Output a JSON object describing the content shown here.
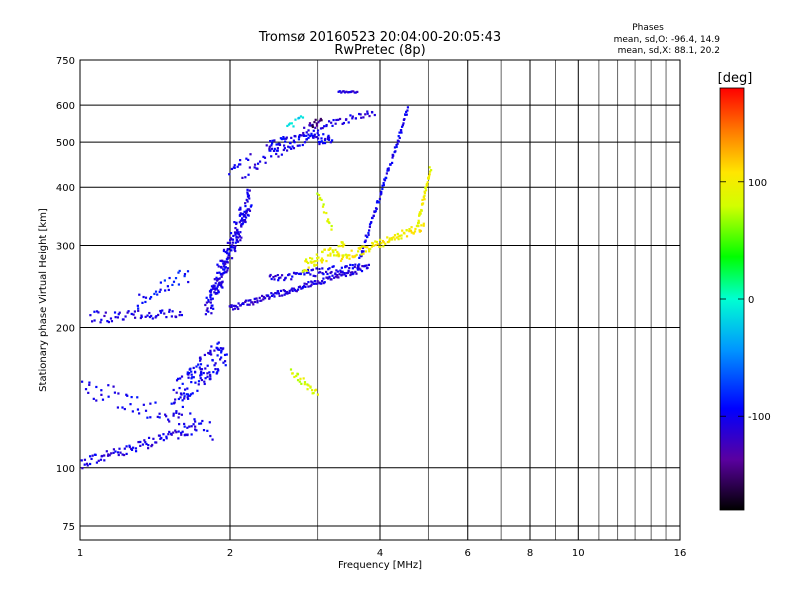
{
  "chart_data": {
    "type": "scatter",
    "title": "Tromsø 20160523 20:04:00-20:05:43",
    "subtitle": "RwPretec (8p)",
    "xlabel": "Frequency [MHz]",
    "ylabel": "Stationary phase Virtual Height [km]",
    "x_scale": "log",
    "y_scale": "log",
    "xlim": [
      1,
      16
    ],
    "ylim": [
      70,
      750
    ],
    "x_ticks": [
      1,
      2,
      4,
      6,
      8,
      10,
      16
    ],
    "x_tick_labels": [
      "1",
      "2",
      "4",
      "6",
      "8",
      "10",
      "16"
    ],
    "x_minor_ticks": [
      3,
      5,
      7,
      9,
      11,
      12,
      13,
      14,
      15
    ],
    "y_ticks": [
      75,
      100,
      200,
      300,
      400,
      500,
      600,
      750
    ],
    "y_tick_labels": [
      "75",
      "100",
      "200",
      "300",
      "400",
      "500",
      "600",
      "750"
    ],
    "grid": true,
    "stats": {
      "heading": "Phases",
      "o_line": "mean, sd,O: -96.4, 14.9",
      "x_line": "mean, sd,X:  88.1, 20.2"
    },
    "colorbar": {
      "label": "[deg]",
      "range": [
        -180,
        180
      ],
      "ticks": [
        100,
        0,
        -100
      ],
      "tick_labels": [
        "100",
        "0",
        "-100"
      ]
    },
    "series": [
      {
        "traces": [
          {
            "x0": 1.0,
            "x1": 1.72,
            "h0": 102,
            "h1": 122,
            "phase": -105,
            "n": 90,
            "spread": 0.025
          },
          {
            "x0": 1.0,
            "x1": 1.85,
            "h0": 150,
            "h1": 120,
            "phase": -100,
            "n": 60,
            "spread": 0.05
          },
          {
            "x0": 1.55,
            "x1": 1.95,
            "h0": 140,
            "h1": 180,
            "phase": -100,
            "n": 120,
            "spread": 0.08
          },
          {
            "x0": 1.05,
            "x1": 1.6,
            "h0": 210,
            "h1": 215,
            "phase": -105,
            "n": 55,
            "spread": 0.03
          },
          {
            "x0": 1.3,
            "x1": 1.65,
            "h0": 225,
            "h1": 260,
            "phase": -90,
            "n": 30,
            "spread": 0.04
          },
          {
            "x0": 1.8,
            "x1": 2.2,
            "h0": 220,
            "h1": 380,
            "phase": -105,
            "n": 200,
            "spread": 0.06
          },
          {
            "x0": 2.0,
            "x1": 3.8,
            "h0": 220,
            "h1": 270,
            "phase": -110,
            "n": 140,
            "spread": 0.015
          },
          {
            "x0": 2.4,
            "x1": 3.6,
            "h0": 255,
            "h1": 270,
            "phase": -105,
            "n": 70,
            "spread": 0.02
          },
          {
            "x0": 3.6,
            "x1": 4.55,
            "h0": 270,
            "h1": 590,
            "phase": -100,
            "n": 90,
            "spread": 0.015
          },
          {
            "x0": 2.0,
            "x1": 2.6,
            "h0": 420,
            "h1": 500,
            "phase": -105,
            "n": 40,
            "spread": 0.05
          },
          {
            "x0": 2.4,
            "x1": 3.2,
            "h0": 490,
            "h1": 515,
            "phase": -100,
            "n": 80,
            "spread": 0.03
          },
          {
            "x0": 2.8,
            "x1": 3.9,
            "h0": 530,
            "h1": 580,
            "phase": -110,
            "n": 45,
            "spread": 0.02
          },
          {
            "x0": 2.6,
            "x1": 2.8,
            "h0": 540,
            "h1": 560,
            "phase": -20,
            "n": 10,
            "spread": 0.02
          },
          {
            "x0": 2.9,
            "x1": 3.05,
            "h0": 540,
            "h1": 560,
            "phase": -150,
            "n": 10,
            "spread": 0.02
          },
          {
            "x0": 3.3,
            "x1": 3.6,
            "h0": 640,
            "h1": 640,
            "phase": -110,
            "n": 15,
            "spread": 0.005
          },
          {
            "x0": 2.8,
            "x1": 3.4,
            "h0": 270,
            "h1": 300,
            "phase": 95,
            "n": 55,
            "spread": 0.03
          },
          {
            "x0": 3.3,
            "x1": 4.9,
            "h0": 280,
            "h1": 330,
            "phase": 100,
            "n": 90,
            "spread": 0.02
          },
          {
            "x0": 4.75,
            "x1": 5.05,
            "h0": 330,
            "h1": 440,
            "phase": 95,
            "n": 40,
            "spread": 0.015
          },
          {
            "x0": 3.0,
            "x1": 3.2,
            "h0": 390,
            "h1": 320,
            "phase": 85,
            "n": 15,
            "spread": 0.02
          },
          {
            "x0": 2.65,
            "x1": 3.0,
            "h0": 160,
            "h1": 145,
            "phase": 85,
            "n": 25,
            "spread": 0.02
          }
        ]
      }
    ]
  }
}
